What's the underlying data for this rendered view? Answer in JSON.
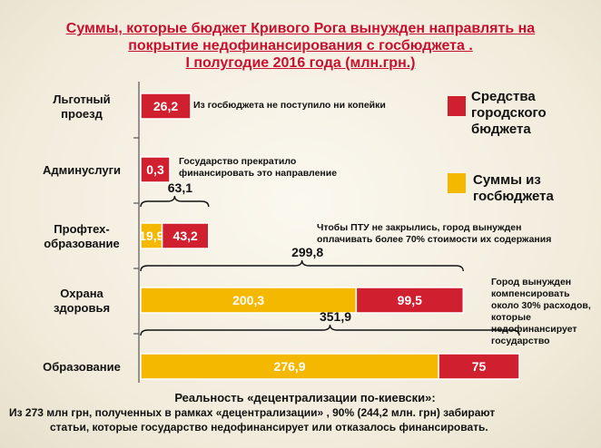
{
  "title": {
    "line1": "Суммы, которые бюджет Кривого Рога вынужден направлять на",
    "line2": "покрытие недофинансирования  с госбюджета .",
    "line3": "I полугодие 2016 года (млн.грн.)"
  },
  "legend": [
    {
      "label": "Средства городского бюджета",
      "lines": [
        "Средства",
        "городского",
        "бюджета"
      ],
      "color": "#d0202f"
    },
    {
      "label": "Суммы из госбюджета",
      "lines": [
        "Суммы из",
        "госбюджета"
      ],
      "color": "#f5b800"
    }
  ],
  "notes": {
    "lgotny": "Из госбюджета не поступило ни копейки",
    "admin": [
      "Государство прекратило",
      "финансировать это направление"
    ],
    "ptu": [
      "Чтобы ПТУ не закрылись, город вынужден",
      "оплачивать более 70% стоимости их содержания"
    ],
    "health": [
      "Город вынужден",
      "компенсировать",
      "около 30% расходов,",
      "которые",
      "недофинансирует",
      "государство"
    ]
  },
  "footer": {
    "heading": "Реальность «децентрализации по-киевски»:",
    "line1": "Из 273 млн грн, полученных в рамках «децентрализации» , 90% (244,2 млн. грн) забирают",
    "line2": "статьи, которые государство недофинансирует или отказалось финансировать."
  },
  "chart_data": {
    "type": "bar",
    "orientation": "horizontal",
    "stacked": true,
    "categories": [
      "Льготный проезд",
      "Админуслуги",
      "Профтех-образование",
      "Охрана здоровья",
      "Образование"
    ],
    "category_lines": [
      [
        "Льготный",
        "проезд"
      ],
      [
        "Админуслуги"
      ],
      [
        "Профтех-",
        "образование"
      ],
      [
        "Охрана",
        "здоровья"
      ],
      [
        "Образование"
      ]
    ],
    "series": [
      {
        "name": "Суммы из госбюджета",
        "color": "#f5b800",
        "values": [
          null,
          null,
          19.9,
          200.3,
          276.9
        ],
        "labels": [
          "",
          "",
          "19,9",
          "200,3",
          "276,9"
        ]
      },
      {
        "name": "Средства городского бюджета",
        "color": "#d0202f",
        "values": [
          26.2,
          0.3,
          43.2,
          99.5,
          75
        ],
        "labels": [
          "26,2",
          "0,3",
          "43,2",
          "99,5",
          "75"
        ]
      }
    ],
    "totals": [
      null,
      null,
      63.1,
      299.8,
      351.9
    ],
    "total_labels": [
      "",
      "",
      "63,1",
      "299,8",
      "351,9"
    ],
    "grid": false,
    "legend_position": "right"
  }
}
